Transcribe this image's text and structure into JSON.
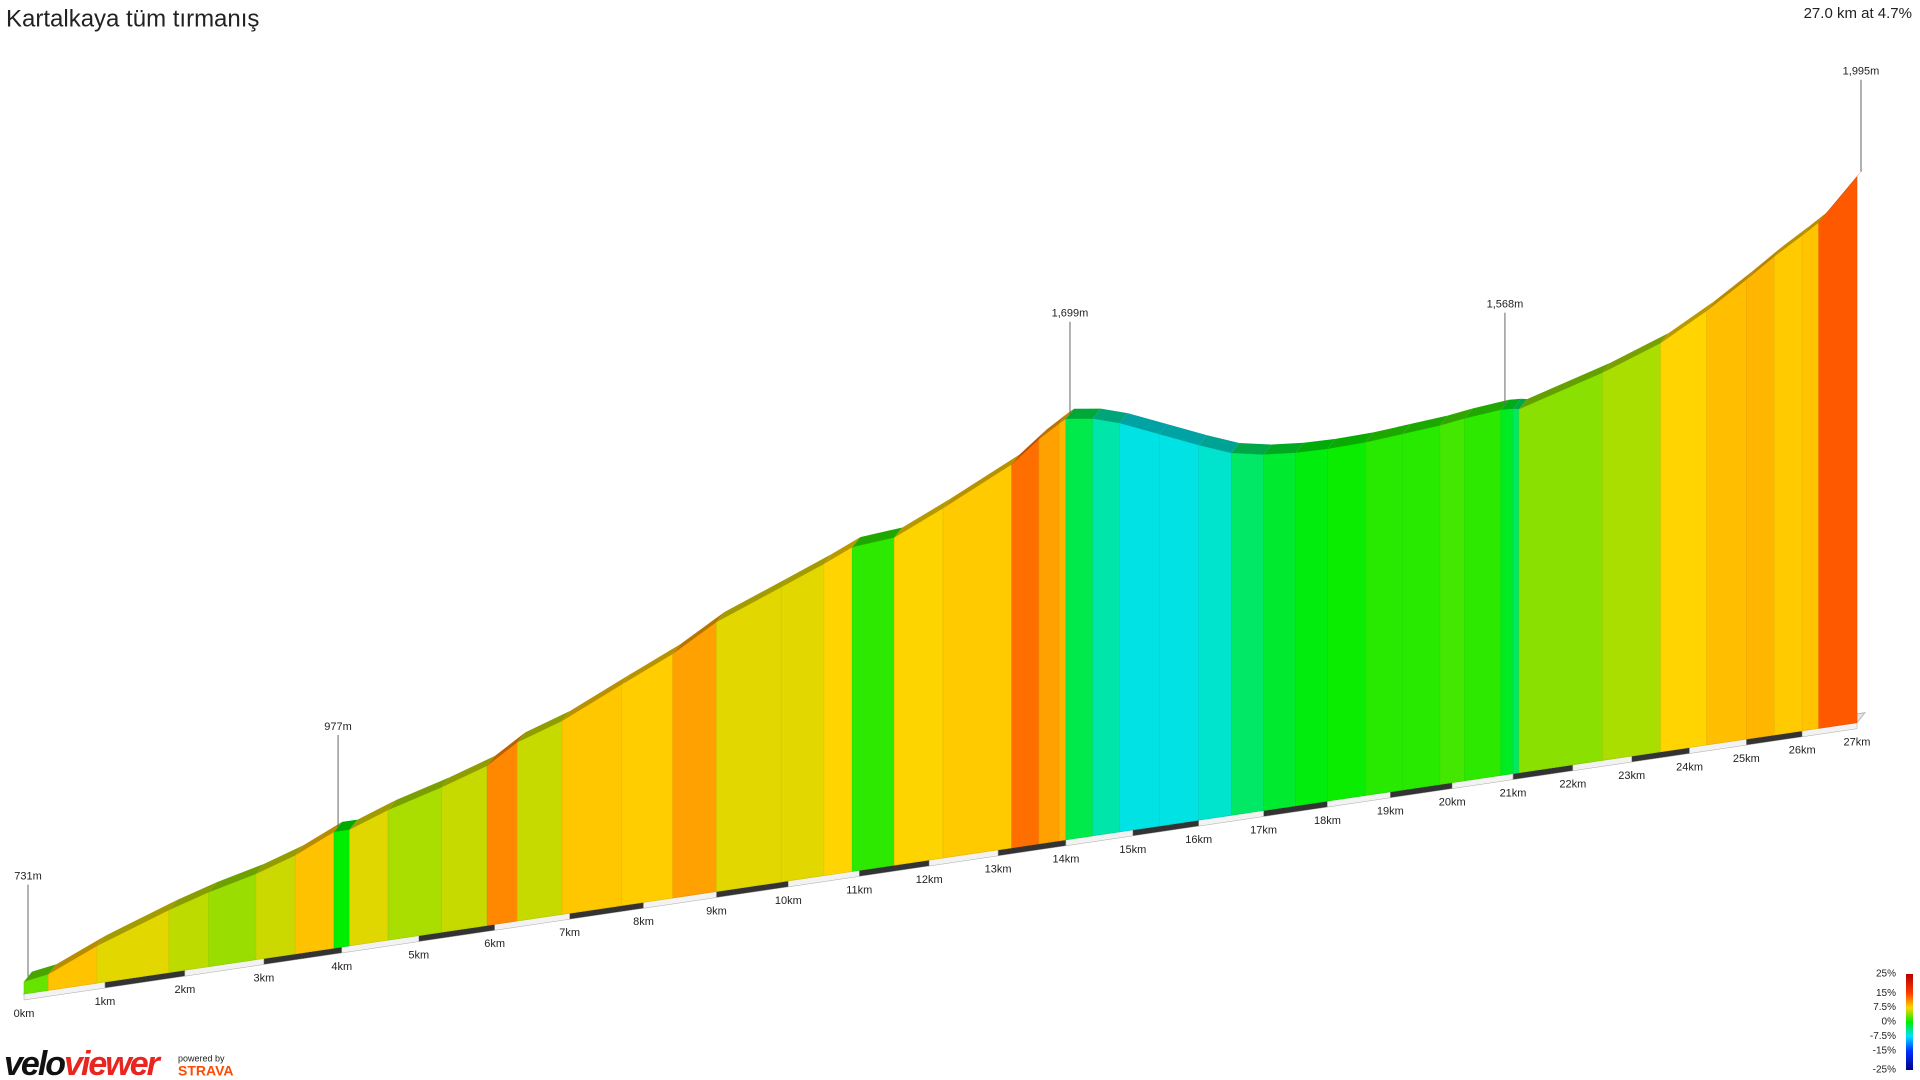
{
  "chart_data": {
    "type": "elevation_profile",
    "title": "Kartalkaya tüm tırmanış",
    "subtitle": "27.0 km at 4.7%",
    "x": [
      0,
      0.3,
      0.9,
      1.8,
      2.3,
      2.9,
      3.4,
      3.9,
      4.1,
      4.6,
      5.3,
      5.9,
      6.3,
      6.9,
      7.7,
      8.4,
      9.0,
      9.9,
      10.5,
      10.9,
      11.5,
      12.2,
      13.2,
      13.6,
      13.9,
      14.0,
      14.4,
      14.8,
      15.4,
      16.0,
      16.5,
      17.0,
      17.5,
      18.0,
      18.6,
      19.2,
      19.8,
      20.2,
      20.8,
      21.0,
      21.1,
      22.5,
      23.5,
      24.3,
      25.0,
      25.5,
      26.0,
      26.3,
      27.0
    ],
    "values": [
      731,
      740,
      790,
      850,
      878,
      905,
      935,
      977,
      977,
      1010,
      1045,
      1080,
      1125,
      1160,
      1225,
      1280,
      1340,
      1400,
      1440,
      1470,
      1478,
      1530,
      1610,
      1660,
      1690,
      1699,
      1690,
      1670,
      1630,
      1590,
      1560,
      1545,
      1538,
      1536,
      1538,
      1545,
      1552,
      1560,
      1568,
      1566,
      1563,
      1620,
      1670,
      1730,
      1790,
      1835,
      1875,
      1900,
      1995
    ],
    "xlim": [
      0,
      27
    ],
    "xticks": [
      {
        "value": 0,
        "label": "0km"
      },
      {
        "value": 1,
        "label": "1km"
      },
      {
        "value": 2,
        "label": "2km"
      },
      {
        "value": 3,
        "label": "3km"
      },
      {
        "value": 4,
        "label": "4km"
      },
      {
        "value": 5,
        "label": "5km"
      },
      {
        "value": 6,
        "label": "6km"
      },
      {
        "value": 7,
        "label": "7km"
      },
      {
        "value": 8,
        "label": "8km"
      },
      {
        "value": 9,
        "label": "9km"
      },
      {
        "value": 10,
        "label": "10km"
      },
      {
        "value": 11,
        "label": "11km"
      },
      {
        "value": 12,
        "label": "12km"
      },
      {
        "value": 13,
        "label": "13km"
      },
      {
        "value": 14,
        "label": "14km"
      },
      {
        "value": 15,
        "label": "15km"
      },
      {
        "value": 16,
        "label": "16km"
      },
      {
        "value": 17,
        "label": "17km"
      },
      {
        "value": 18,
        "label": "18km"
      },
      {
        "value": 19,
        "label": "19km"
      },
      {
        "value": 20,
        "label": "20km"
      },
      {
        "value": 21,
        "label": "21km"
      },
      {
        "value": 22,
        "label": "22km"
      },
      {
        "value": 23,
        "label": "23km"
      },
      {
        "value": 24,
        "label": "24km"
      },
      {
        "value": 25,
        "label": "25km"
      },
      {
        "value": 26,
        "label": "26km"
      },
      {
        "value": 27,
        "label": "27km"
      }
    ],
    "annotations": [
      {
        "x": 0,
        "y": 731,
        "label": "731m"
      },
      {
        "x": 3.9,
        "y": 977,
        "label": "977m"
      },
      {
        "x": 14.0,
        "y": 1699,
        "label": "1,699m"
      },
      {
        "x": 20.8,
        "y": 1568,
        "label": "1,568m"
      },
      {
        "x": 27.0,
        "y": 1995,
        "label": "1,995m"
      }
    ],
    "colorscale": {
      "ticks": [
        {
          "value": 25,
          "label": "25%"
        },
        {
          "value": 15,
          "label": "15%"
        },
        {
          "value": 7.5,
          "label": "7.5%"
        },
        {
          "value": 0,
          "label": "0%"
        },
        {
          "value": -7.5,
          "label": "-7.5%"
        },
        {
          "value": -15,
          "label": "-15%"
        },
        {
          "value": -25,
          "label": "-25%"
        }
      ],
      "colors": [
        "#b40000",
        "#ff3c00",
        "#ffd400",
        "#00ee00",
        "#00e0ff",
        "#0030ff",
        "#00008b"
      ]
    }
  },
  "branding": {
    "logo_part1": "velo",
    "logo_part2": "viewer",
    "powered_by": "powered by",
    "strava": "STRAVA"
  }
}
